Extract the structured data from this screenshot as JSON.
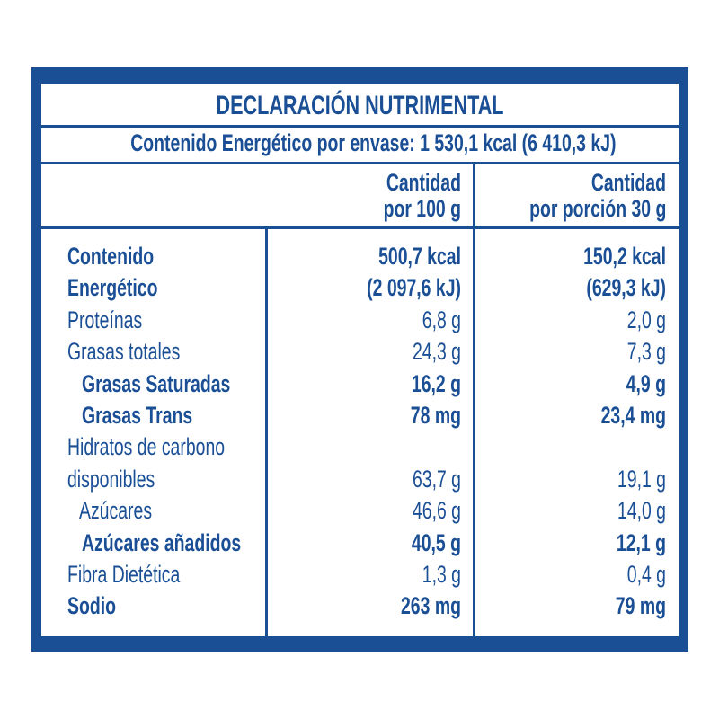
{
  "title": "DECLARACIÓN NUTRIMENTAL",
  "energy_per_package": "Contenido Energético por envase: 1 530,1 kcal (6 410,3 kJ)",
  "columns": [
    {
      "line1": "Cantidad",
      "line2": "por 100 g"
    },
    {
      "line1": "Cantidad",
      "line2": "por porción 30 g"
    }
  ],
  "rows": [
    {
      "label": "Contenido",
      "per100": "500,7 kcal",
      "perPortion": "150,2 kcal",
      "bold": true,
      "indent": 0
    },
    {
      "label": "Energético",
      "per100": "(2 097,6 kJ)",
      "perPortion": "(629,3 kJ)",
      "bold": true,
      "indent": 0
    },
    {
      "label": "Proteínas",
      "per100": "6,8 g",
      "perPortion": "2,0 g",
      "bold": false,
      "indent": 0
    },
    {
      "label": "Grasas totales",
      "per100": "24,3 g",
      "perPortion": "7,3 g",
      "bold": false,
      "indent": 0
    },
    {
      "label": "Grasas Saturadas",
      "per100": "16,2 g",
      "perPortion": "4,9 g",
      "bold": true,
      "indent": 2
    },
    {
      "label": "Grasas Trans",
      "per100": "78 mg",
      "perPortion": "23,4 mg",
      "bold": true,
      "indent": 2
    },
    {
      "label": "Hidratos de carbono",
      "per100": "",
      "perPortion": "",
      "bold": false,
      "indent": 0
    },
    {
      "label": "disponibles",
      "per100": "63,7 g",
      "perPortion": "19,1 g",
      "bold": false,
      "indent": 0
    },
    {
      "label": "Azúcares",
      "per100": "46,6 g",
      "perPortion": "14,0 g",
      "bold": false,
      "indent": 1
    },
    {
      "label": "Azúcares añadidos",
      "per100": "40,5 g",
      "perPortion": "12,1 g",
      "bold": true,
      "indent": 2
    },
    {
      "label": "Fibra Dietética",
      "per100": "1,3 g",
      "perPortion": "0,4 g",
      "bold": false,
      "indent": 0
    },
    {
      "label": "Sodio",
      "per100": "263 mg",
      "perPortion": "79 mg",
      "bold": true,
      "indent": 0
    }
  ],
  "colors": {
    "primary": "#1a4f96",
    "background": "#ffffff"
  }
}
